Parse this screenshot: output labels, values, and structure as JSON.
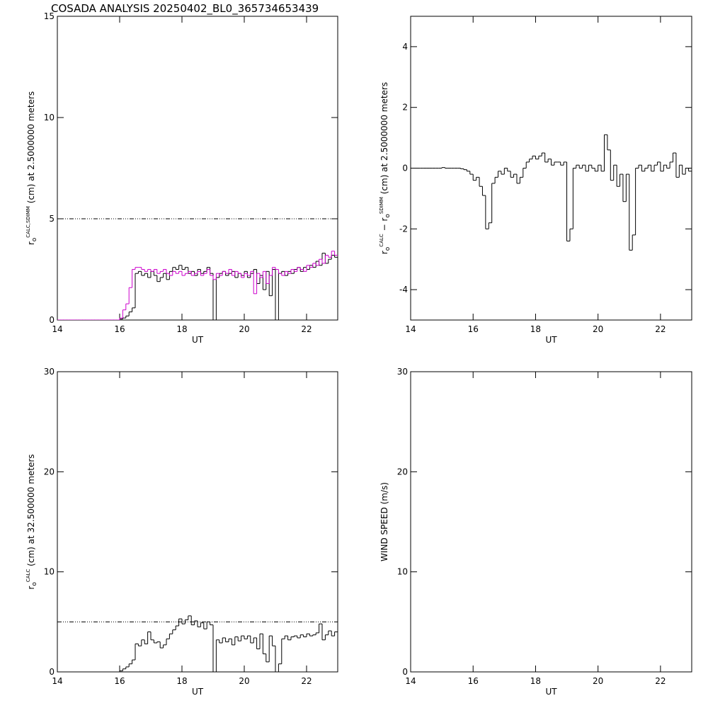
{
  "chart_data": [
    {
      "type": "line",
      "title": "COSADA ANALYSIS 20250402_BL0_365734653439",
      "ylabel": [
        {
          "text": "r"
        },
        {
          "text": "o",
          "shift": "sub"
        },
        {
          "text": "CALC,SDIMM",
          "shift": "sup"
        },
        {
          "text": "  (cm)  at  2.5000000 meters"
        }
      ],
      "xlabel": "UT",
      "x": [
        14.0,
        14.1,
        14.2,
        14.3,
        14.4,
        14.5,
        14.6,
        14.7,
        14.8,
        14.9,
        15.0,
        15.1,
        15.2,
        15.3,
        15.4,
        15.5,
        15.6,
        15.7,
        15.8,
        15.9,
        16.0,
        16.1,
        16.2,
        16.3,
        16.4,
        16.5,
        16.6,
        16.7,
        16.8,
        16.9,
        17.0,
        17.1,
        17.2,
        17.3,
        17.4,
        17.5,
        17.6,
        17.7,
        17.8,
        17.9,
        18.0,
        18.1,
        18.2,
        18.3,
        18.4,
        18.5,
        18.6,
        18.7,
        18.8,
        18.9,
        19.0,
        19.1,
        19.2,
        19.3,
        19.4,
        19.5,
        19.6,
        19.7,
        19.8,
        19.9,
        20.0,
        20.1,
        20.2,
        20.3,
        20.4,
        20.5,
        20.6,
        20.7,
        20.8,
        20.9,
        21.0,
        21.1,
        21.2,
        21.3,
        21.4,
        21.5,
        21.6,
        21.7,
        21.8,
        21.9,
        22.0,
        22.1,
        22.2,
        22.3,
        22.4,
        22.5,
        22.6,
        22.7,
        22.8,
        22.9
      ],
      "series": [
        {
          "color": "#000000",
          "values": [
            0,
            0,
            0,
            0,
            0,
            0,
            0,
            0,
            0,
            0,
            0,
            0,
            0,
            0,
            0,
            0,
            0,
            0,
            0,
            0,
            0.05,
            0.1,
            0.2,
            0.4,
            0.6,
            2.3,
            2.4,
            2.2,
            2.3,
            2.1,
            2.4,
            2.2,
            1.9,
            2.1,
            2.3,
            2.0,
            2.4,
            2.6,
            2.5,
            2.7,
            2.5,
            2.6,
            2.3,
            2.4,
            2.2,
            2.5,
            2.3,
            2.4,
            2.6,
            2.3,
            -0.1,
            2.1,
            2.3,
            2.4,
            2.2,
            2.3,
            2.4,
            2.1,
            2.3,
            2.2,
            2.4,
            2.1,
            2.3,
            2.5,
            1.8,
            2.2,
            1.5,
            2.4,
            1.2,
            2.5,
            -0.1,
            2.3,
            2.4,
            2.2,
            2.4,
            2.3,
            2.5,
            2.6,
            2.4,
            2.6,
            2.5,
            2.7,
            2.6,
            2.9,
            2.7,
            3.3,
            2.8,
            3.0,
            3.2,
            3.1
          ]
        },
        {
          "color": "#cc00cc",
          "values": [
            0,
            0,
            0,
            0,
            0,
            0,
            0,
            0,
            0,
            0,
            0,
            0,
            0,
            0,
            0,
            0,
            0,
            0,
            0,
            0,
            0.1,
            0.5,
            0.8,
            1.6,
            2.5,
            2.6,
            2.6,
            2.5,
            2.4,
            2.5,
            2.4,
            2.5,
            2.3,
            2.4,
            2.5,
            2.3,
            2.2,
            2.4,
            2.3,
            2.4,
            2.2,
            2.3,
            2.4,
            2.2,
            2.3,
            2.4,
            2.2,
            2.3,
            2.5,
            2.2,
            2.0,
            2.3,
            2.2,
            2.4,
            2.3,
            2.5,
            2.2,
            2.4,
            2.3,
            2.1,
            2.3,
            2.2,
            2.4,
            1.3,
            2.3,
            2.1,
            2.4,
            1.8,
            2.2,
            2.6,
            2.5,
            2.3,
            2.2,
            2.4,
            2.3,
            2.5,
            2.4,
            2.6,
            2.5,
            2.4,
            2.7,
            2.6,
            2.8,
            2.7,
            3.0,
            2.8,
            3.2,
            3.1,
            3.4,
            3.2
          ]
        }
      ],
      "refline": 5,
      "xlim": [
        14,
        23
      ],
      "xticks": [
        14,
        16,
        18,
        20,
        22
      ],
      "ylim": [
        0,
        15
      ],
      "yticks": [
        0,
        5,
        10,
        15
      ]
    },
    {
      "type": "line",
      "ylabel": [
        {
          "text": "r"
        },
        {
          "text": "o",
          "shift": "sub"
        },
        {
          "text": "CALC",
          "shift": "sup"
        },
        {
          "text": "  − r"
        },
        {
          "text": "o",
          "shift": "sub"
        },
        {
          "text": "SDIMM",
          "shift": "sup"
        },
        {
          "text": "  (cm) at 2.5000000 meters"
        }
      ],
      "xlabel": "UT",
      "x": [
        14.0,
        14.1,
        14.2,
        14.3,
        14.4,
        14.5,
        14.6,
        14.7,
        14.8,
        14.9,
        15.0,
        15.1,
        15.2,
        15.3,
        15.4,
        15.5,
        15.6,
        15.7,
        15.8,
        15.9,
        16.0,
        16.1,
        16.2,
        16.3,
        16.4,
        16.5,
        16.6,
        16.7,
        16.8,
        16.9,
        17.0,
        17.1,
        17.2,
        17.3,
        17.4,
        17.5,
        17.6,
        17.7,
        17.8,
        17.9,
        18.0,
        18.1,
        18.2,
        18.3,
        18.4,
        18.5,
        18.6,
        18.7,
        18.8,
        18.9,
        19.0,
        19.1,
        19.2,
        19.3,
        19.4,
        19.5,
        19.6,
        19.7,
        19.8,
        19.9,
        20.0,
        20.1,
        20.2,
        20.3,
        20.4,
        20.5,
        20.6,
        20.7,
        20.8,
        20.9,
        21.0,
        21.1,
        21.2,
        21.3,
        21.4,
        21.5,
        21.6,
        21.7,
        21.8,
        21.9,
        22.0,
        22.1,
        22.2,
        22.3,
        22.4,
        22.5,
        22.6,
        22.7,
        22.8,
        22.9
      ],
      "series": [
        {
          "color": "#000000",
          "values": [
            0,
            0,
            0,
            0,
            0,
            0,
            0,
            0,
            0,
            0,
            0.02,
            0,
            0,
            0,
            0,
            0,
            -0.02,
            -0.05,
            -0.1,
            -0.2,
            -0.4,
            -0.3,
            -0.6,
            -0.9,
            -2.0,
            -1.8,
            -0.5,
            -0.3,
            -0.1,
            -0.2,
            0.0,
            -0.1,
            -0.3,
            -0.2,
            -0.5,
            -0.3,
            0.0,
            0.2,
            0.3,
            0.4,
            0.3,
            0.4,
            0.5,
            0.2,
            0.3,
            0.1,
            0.2,
            0.2,
            0.1,
            0.2,
            -2.4,
            -2.0,
            0.0,
            0.1,
            0.0,
            0.1,
            -0.1,
            0.1,
            0.0,
            -0.1,
            0.1,
            -0.1,
            1.1,
            0.6,
            -0.4,
            0.1,
            -0.6,
            -0.2,
            -1.1,
            -0.2,
            -2.7,
            -2.2,
            0.0,
            0.1,
            -0.1,
            0.0,
            0.1,
            -0.1,
            0.1,
            0.2,
            -0.1,
            0.1,
            0.0,
            0.2,
            0.5,
            -0.3,
            0.1,
            -0.2,
            0.0,
            -0.1
          ]
        }
      ],
      "xlim": [
        14,
        23
      ],
      "xticks": [
        14,
        16,
        18,
        20,
        22
      ],
      "ylim": [
        -5,
        5
      ],
      "yticks": [
        -4,
        -2,
        0,
        2,
        4
      ]
    },
    {
      "type": "line",
      "ylabel": [
        {
          "text": "r"
        },
        {
          "text": "o",
          "shift": "sub"
        },
        {
          "text": "CALC",
          "shift": "sup"
        },
        {
          "text": "  (cm) at 32.500000 meters"
        }
      ],
      "xlabel": "UT",
      "x": [
        14.0,
        14.1,
        14.2,
        14.3,
        14.4,
        14.5,
        14.6,
        14.7,
        14.8,
        14.9,
        15.0,
        15.1,
        15.2,
        15.3,
        15.4,
        15.5,
        15.6,
        15.7,
        15.8,
        15.9,
        16.0,
        16.1,
        16.2,
        16.3,
        16.4,
        16.5,
        16.6,
        16.7,
        16.8,
        16.9,
        17.0,
        17.1,
        17.2,
        17.3,
        17.4,
        17.5,
        17.6,
        17.7,
        17.8,
        17.9,
        18.0,
        18.1,
        18.2,
        18.3,
        18.4,
        18.5,
        18.6,
        18.7,
        18.8,
        18.9,
        19.0,
        19.1,
        19.2,
        19.3,
        19.4,
        19.5,
        19.6,
        19.7,
        19.8,
        19.9,
        20.0,
        20.1,
        20.2,
        20.3,
        20.4,
        20.5,
        20.6,
        20.7,
        20.8,
        20.9,
        21.0,
        21.1,
        21.2,
        21.3,
        21.4,
        21.5,
        21.6,
        21.7,
        21.8,
        21.9,
        22.0,
        22.1,
        22.2,
        22.3,
        22.4,
        22.5,
        22.6,
        22.7,
        22.8,
        22.9
      ],
      "series": [
        {
          "color": "#000000",
          "values": [
            0,
            0,
            0,
            0,
            0,
            0,
            0,
            0,
            0,
            0,
            0,
            0,
            0,
            0,
            0,
            0,
            0,
            0,
            0,
            0,
            0.1,
            0.3,
            0.5,
            0.8,
            1.2,
            2.8,
            2.6,
            3.2,
            2.8,
            4.0,
            3.2,
            2.9,
            3.0,
            2.4,
            2.7,
            3.3,
            3.8,
            4.2,
            4.6,
            5.3,
            4.8,
            5.2,
            5.6,
            4.7,
            5.1,
            4.5,
            4.9,
            4.3,
            5.0,
            4.7,
            -0.3,
            3.2,
            2.9,
            3.4,
            3.0,
            3.3,
            2.7,
            3.5,
            3.1,
            3.6,
            3.3,
            3.6,
            2.9,
            3.4,
            2.3,
            3.8,
            1.8,
            1.0,
            3.6,
            2.6,
            -0.3,
            0.8,
            3.3,
            3.6,
            3.2,
            3.5,
            3.6,
            3.4,
            3.7,
            3.5,
            3.8,
            3.6,
            3.7,
            3.9,
            4.8,
            3.2,
            3.7,
            4.1,
            3.6,
            4.0
          ]
        }
      ],
      "refline": 5,
      "xlim": [
        14,
        23
      ],
      "xticks": [
        14,
        16,
        18,
        20,
        22
      ],
      "ylim": [
        0,
        30
      ],
      "yticks": [
        0,
        10,
        20,
        30
      ]
    },
    {
      "type": "line",
      "ylabel": [
        {
          "text": "WIND SPEED (m/s)"
        }
      ],
      "xlabel": "UT",
      "series": [],
      "xlim": [
        14,
        23
      ],
      "xticks": [
        14,
        16,
        18,
        20,
        22
      ],
      "ylim": [
        0,
        30
      ],
      "yticks": [
        0,
        10,
        20,
        30
      ]
    }
  ]
}
